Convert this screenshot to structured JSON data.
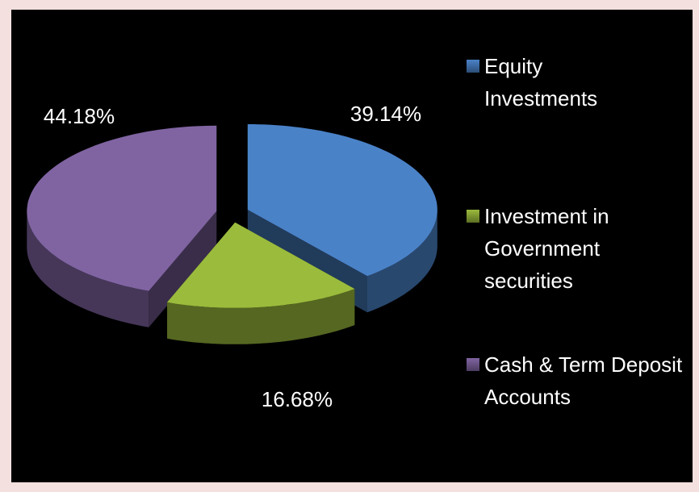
{
  "chart_data": {
    "type": "pie",
    "categories": [
      "Equity Investments",
      "Investment in Government securities",
      "Cash & Term Deposit Accounts"
    ],
    "values": [
      39.14,
      16.68,
      44.18
    ],
    "value_labels": [
      "39.14%",
      "16.68%",
      "44.18%"
    ],
    "colors": [
      "#4a82c8",
      "#9bbb3c",
      "#8064a2"
    ],
    "legend": "right"
  }
}
